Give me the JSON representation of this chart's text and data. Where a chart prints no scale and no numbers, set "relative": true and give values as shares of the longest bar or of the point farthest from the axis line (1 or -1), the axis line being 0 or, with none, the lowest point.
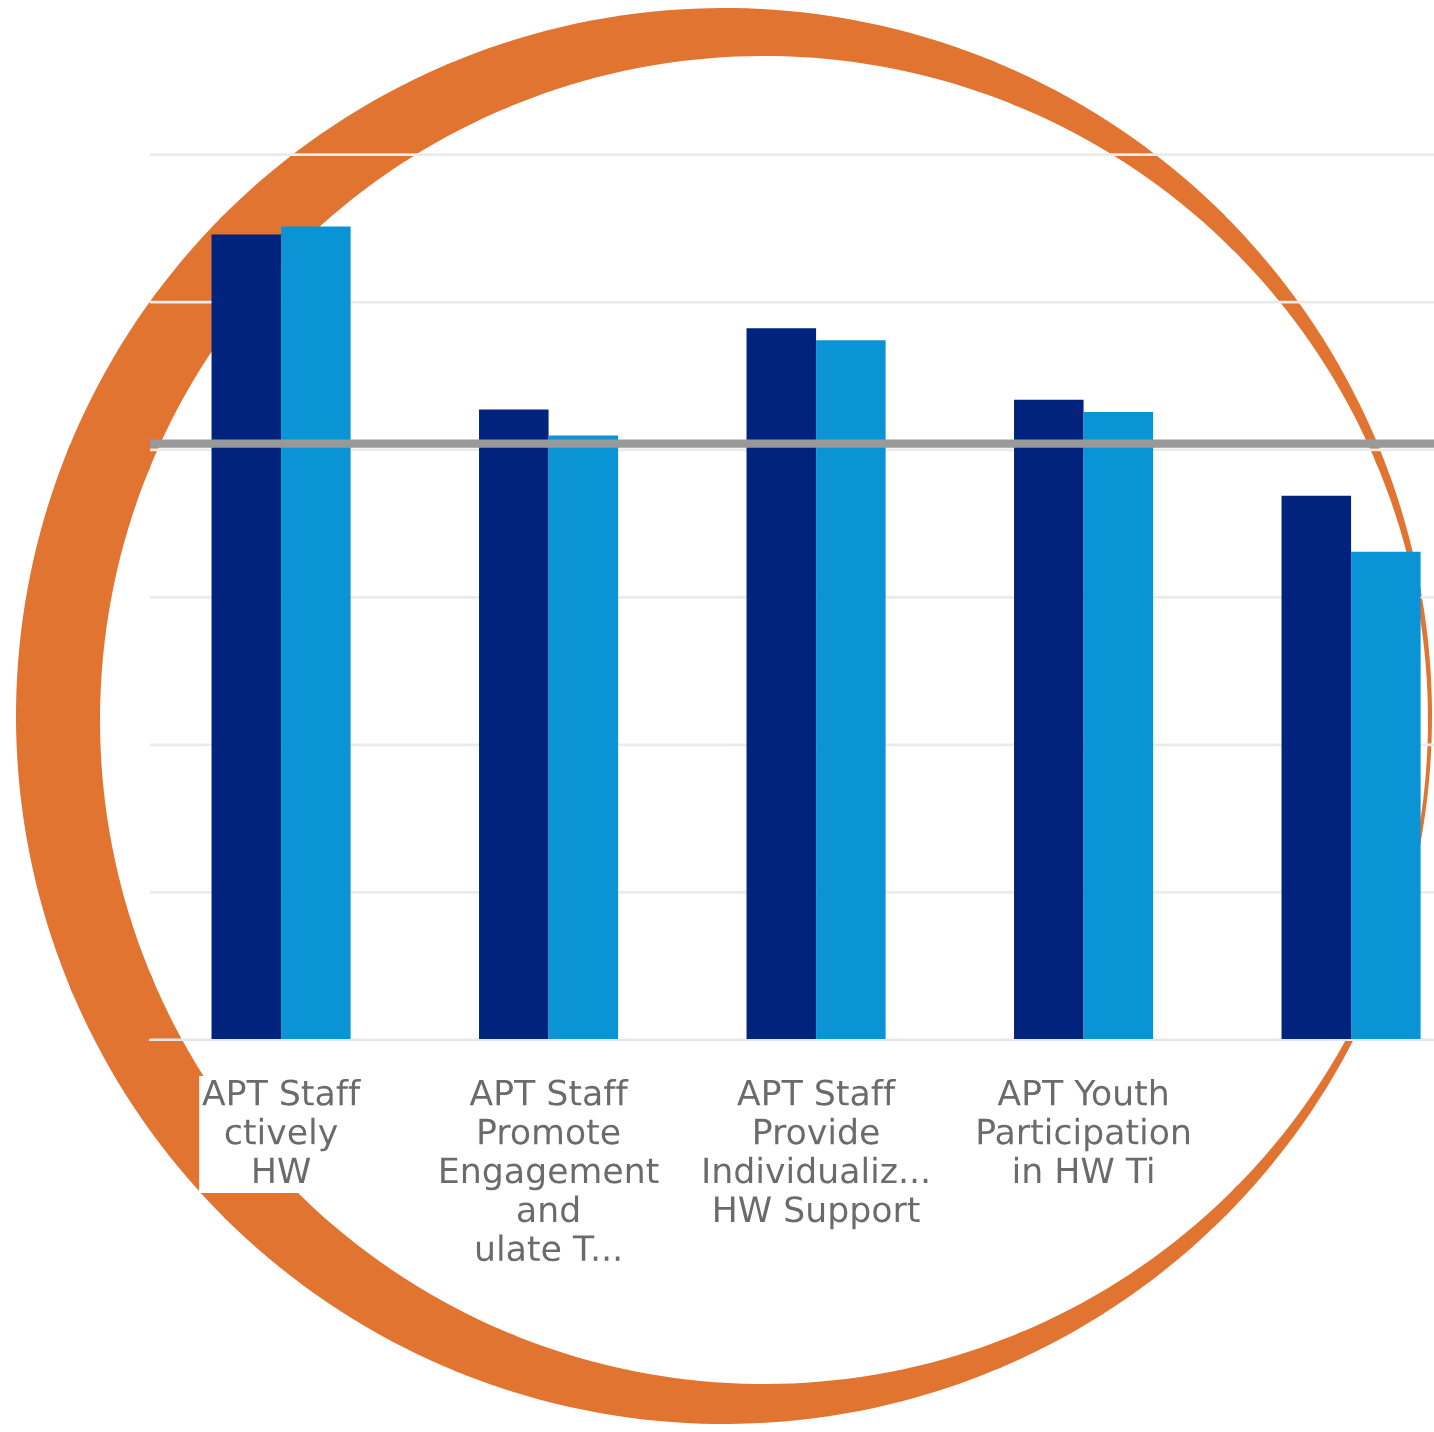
{
  "chart_data": {
    "type": "bar",
    "relative": true,
    "categories": [
      "APT Staff\nctively\nHW",
      "APT Staff\nPromote\nEngagement\nand\nulate T...",
      "APT Staff\nProvide\nIndividualiz...\nHW Support",
      "APT Youth\nParticipation\nin HW Ti",
      null
    ],
    "series": [
      {
        "color": "#00247d",
        "values": [
          0.99,
          0.775,
          0.875,
          0.787,
          0.669
        ]
      },
      {
        "color": "#0a94d6",
        "values": [
          1,
          0.743,
          0.86,
          0.772,
          0.6
        ]
      }
    ],
    "ref_lines": [
      {
        "axis": "y",
        "value": 0.733,
        "color": "#999999"
      }
    ],
    "grid": "y",
    "tick_labels": "x"
  }
}
